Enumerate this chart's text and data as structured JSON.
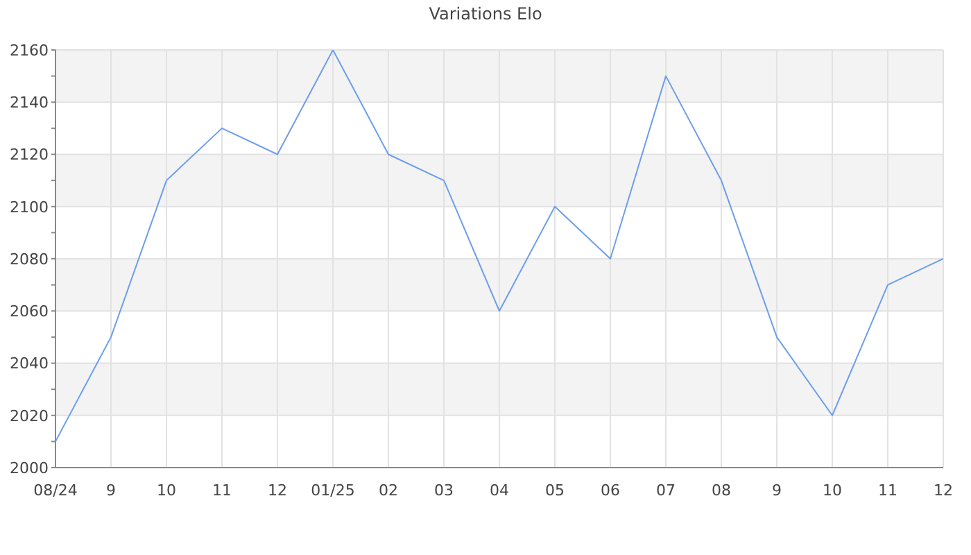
{
  "chart_data": {
    "type": "line",
    "title": "Variations Elo",
    "categories": [
      "08/24",
      "9",
      "10",
      "11",
      "12",
      "01/25",
      "02",
      "03",
      "04",
      "05",
      "06",
      "07",
      "08",
      "9",
      "10",
      "11",
      "12"
    ],
    "values": [
      2010,
      2050,
      2110,
      2130,
      2120,
      2160,
      2120,
      2110,
      2060,
      2100,
      2080,
      2150,
      2110,
      2050,
      2020,
      2070,
      2080
    ],
    "color": "#6d9eeb",
    "line_style": "solid",
    "ylim": [
      2000,
      2160
    ],
    "yticks": [
      2000,
      {
        "value": 2010,
        "label": null
      },
      2020,
      {
        "value": 2030,
        "label": null
      },
      2040,
      {
        "value": 2050,
        "label": null
      },
      2060,
      {
        "value": 2070,
        "label": null
      },
      2080,
      {
        "value": 2090,
        "label": null
      },
      2100,
      {
        "value": 2110,
        "label": null
      },
      2120,
      {
        "value": 2130,
        "label": null
      },
      2140,
      {
        "value": 2150,
        "label": null
      },
      2160
    ],
    "grid": true
  }
}
